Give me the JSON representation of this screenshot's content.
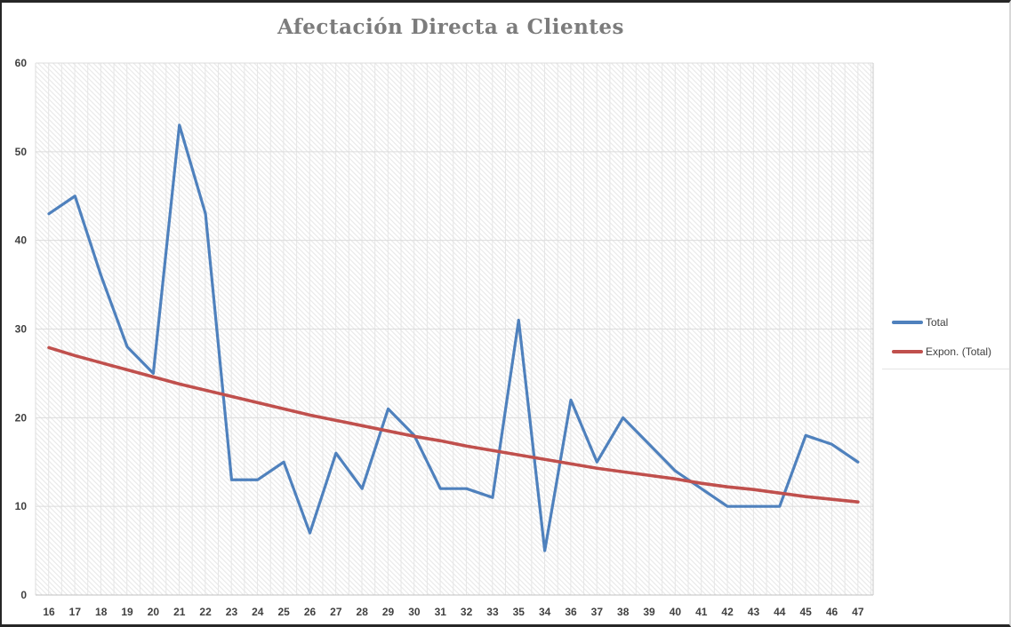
{
  "chart": {
    "title": "Afectación Directa a Clientes",
    "legend": {
      "items": [
        {
          "label": "Total",
          "color": "#4F81BD"
        },
        {
          "label": "Expon. (Total)",
          "color": "#C0504D"
        }
      ]
    }
  },
  "chart_data": {
    "type": "line",
    "title": "Afectación Directa a Clientes",
    "categories": [
      "16",
      "17",
      "18",
      "19",
      "20",
      "21",
      "22",
      "23",
      "24",
      "25",
      "26",
      "27",
      "28",
      "29",
      "30",
      "31",
      "32",
      "33",
      "35",
      "34",
      "36",
      "37",
      "38",
      "39",
      "40",
      "41",
      "42",
      "43",
      "44",
      "45",
      "46",
      "47"
    ],
    "series": [
      {
        "name": "Total",
        "color": "#4F81BD",
        "style": "solid",
        "values": [
          43,
          45,
          36,
          28,
          25,
          53,
          43,
          13,
          13,
          15,
          7,
          16,
          12,
          21,
          18,
          12,
          12,
          11,
          31,
          5,
          22,
          15,
          20,
          17,
          14,
          12,
          10,
          10,
          10,
          18,
          17,
          15
        ]
      },
      {
        "name": "Expon. (Total)",
        "color": "#C0504D",
        "style": "exponential-trendline",
        "values": [
          27.9,
          27.0,
          26.2,
          25.4,
          24.6,
          23.8,
          23.1,
          22.4,
          21.7,
          21.0,
          20.3,
          19.7,
          19.1,
          18.5,
          17.9,
          17.4,
          16.8,
          16.3,
          15.8,
          15.3,
          14.8,
          14.3,
          13.9,
          13.5,
          13.1,
          12.6,
          12.2,
          11.9,
          11.5,
          11.1,
          10.8,
          10.5
        ]
      }
    ],
    "ylim": [
      0,
      60
    ],
    "yticks": [
      0,
      10,
      20,
      30,
      40,
      50,
      60
    ],
    "grid": true,
    "plot_fill": "diagonal-hatch",
    "legend_position": "right",
    "axis_label_color": "#404040",
    "gridline_color": "#dcdcdc"
  }
}
